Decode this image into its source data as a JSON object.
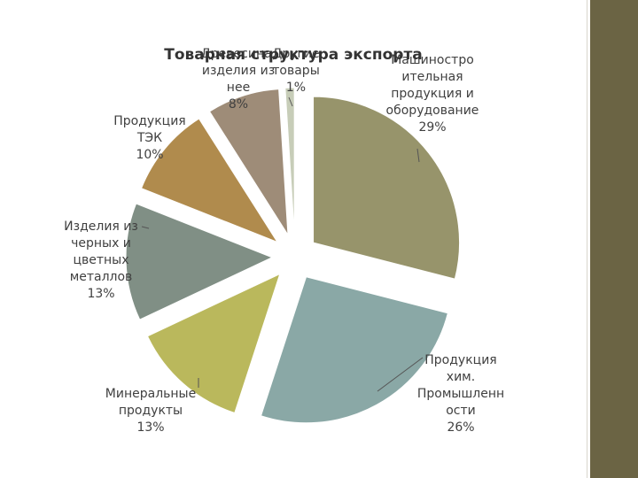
{
  "slide": {
    "sidebar_color": "#6b6444"
  },
  "chart_data": {
    "type": "pie",
    "title": "Товарная структура экспорта",
    "exploded": true,
    "slices": [
      {
        "label": "Машиностроительная продукция и оборудование",
        "display": "Машиностро\nительная\nпродукция и\nоборудование\n29%",
        "value": 29,
        "color": "#97946b"
      },
      {
        "label": "Продукция хим. Промышленности",
        "display": "Продукция\nхим.\nПромышленн\nости\n26%",
        "value": 26,
        "color": "#8aa8a6"
      },
      {
        "label": "Минеральные продукты",
        "display": "Минеральные\nпродукты\n13%",
        "value": 13,
        "color": "#bab85c"
      },
      {
        "label": "Изделия из черных и цветных металлов",
        "display": "Изделия из\nчерных и\nцветных\nметаллов\n13%",
        "value": 13,
        "color": "#808f85"
      },
      {
        "label": "Продукция ТЭК",
        "display": "Продукция\nТЭК\n10%",
        "value": 10,
        "color": "#b08b4d"
      },
      {
        "label": "Древесина, изделия из нее",
        "display": "Древесина,\nизделия из\nнее\n8%",
        "value": 8,
        "color": "#9e8c78"
      },
      {
        "label": "Другие товары",
        "display": "Другие\nтовары\n1%",
        "value": 1,
        "color": "#c7cdb8"
      }
    ]
  }
}
